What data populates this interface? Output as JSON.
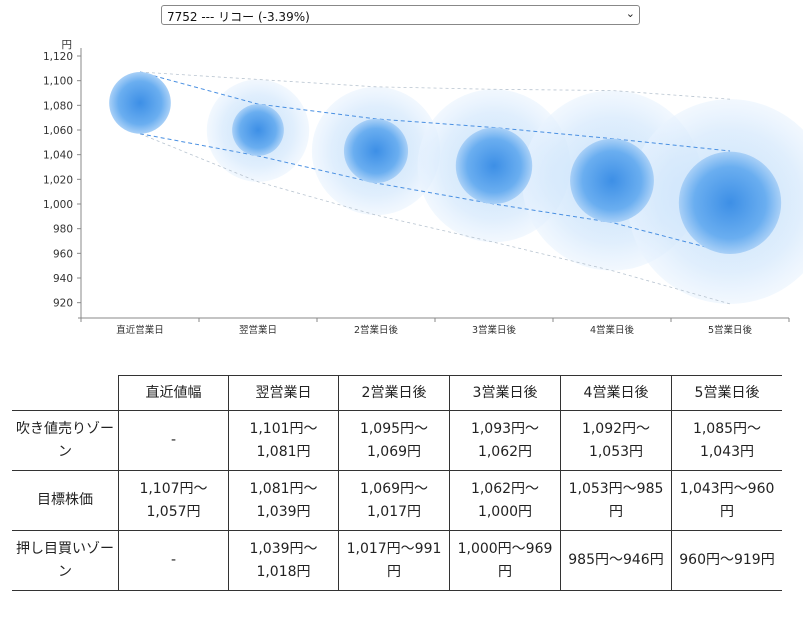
{
  "stock_selector": {
    "selected": "7752 --- リコー (-3.39%)"
  },
  "chart_data": {
    "type": "scatter",
    "y_unit": "円",
    "categories": [
      "直近営業日",
      "翌営業日",
      "2営業日後",
      "3営業日後",
      "4営業日後",
      "5営業日後"
    ],
    "y_ticks": [
      920,
      940,
      960,
      980,
      1000,
      1020,
      1040,
      1060,
      1080,
      1100,
      1120
    ],
    "ylim": [
      910,
      1120
    ],
    "tick_labels": [
      "920",
      "940",
      "960",
      "980",
      "1,000",
      "1,020",
      "1,040",
      "1,060",
      "1,080",
      "1,100",
      "1,120"
    ],
    "centers": [
      1082,
      1060,
      1043,
      1031,
      1019,
      1001
    ],
    "target_high": [
      1107,
      1081,
      1069,
      1062,
      1053,
      1043
    ],
    "target_low": [
      1057,
      1039,
      1017,
      1000,
      985,
      960
    ],
    "zone_high": [
      1107,
      1101,
      1095,
      1093,
      1092,
      1085
    ],
    "zone_low": [
      1057,
      1018,
      991,
      969,
      946,
      919
    ]
  },
  "table": {
    "headers": [
      "",
      "直近値幅",
      "翌営業日",
      "2営業日後",
      "3営業日後",
      "4営業日後",
      "5営業日後"
    ],
    "rows": [
      {
        "label": "吹き値売りゾーン",
        "cells": [
          "-",
          "1,101円〜1,081円",
          "1,095円〜1,069円",
          "1,093円〜1,062円",
          "1,092円〜1,053円",
          "1,085円〜1,043円"
        ]
      },
      {
        "label": "目標株価",
        "cells": [
          "1,107円〜1,057円",
          "1,081円〜1,039円",
          "1,069円〜1,017円",
          "1,062円〜1,000円",
          "1,053円〜985円",
          "1,043円〜960円"
        ]
      },
      {
        "label": "押し目買いゾーン",
        "cells": [
          "-",
          "1,039円〜1,018円",
          "1,017円〜991円",
          "1,000円〜969円",
          "985円〜946円",
          "960円〜919円"
        ]
      }
    ]
  }
}
